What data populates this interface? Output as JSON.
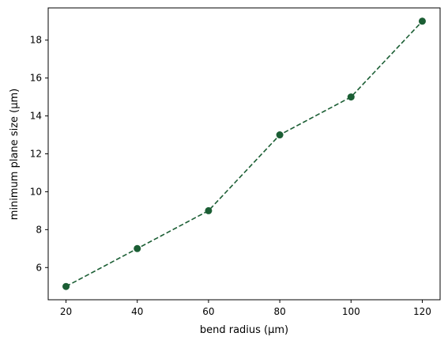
{
  "chart_data": {
    "type": "line",
    "x": [
      20,
      40,
      60,
      80,
      100,
      120
    ],
    "series": [
      {
        "values": [
          5,
          7,
          9,
          13,
          15,
          19
        ],
        "color": "#1b5e34",
        "line_style": "dashed",
        "marker": "circle"
      }
    ],
    "xlabel": "bend radius (μm)",
    "ylabel": "minimum plane size (μm)",
    "xlim": [
      15,
      125
    ],
    "ylim": [
      4.3,
      19.7
    ],
    "x_ticks": [
      20,
      40,
      60,
      80,
      100,
      120
    ],
    "y_ticks": [
      6,
      8,
      10,
      12,
      14,
      16,
      18
    ],
    "grid": false,
    "legend": "none"
  }
}
